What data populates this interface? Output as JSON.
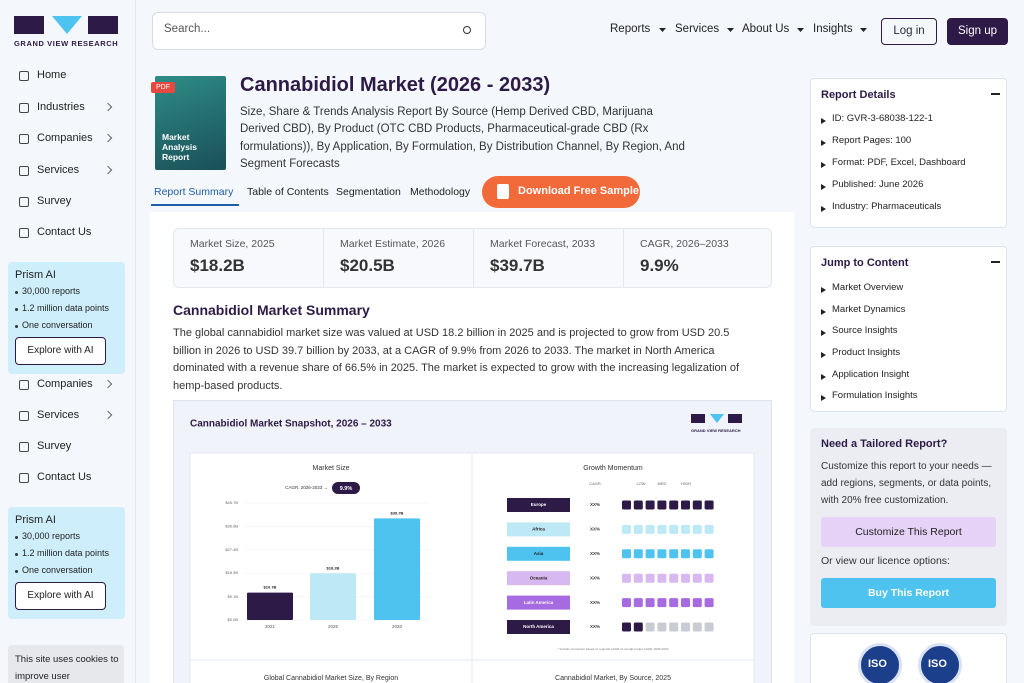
{
  "sidebar": {
    "logo": "GRAND VIEW RESEARCH",
    "nav": [
      "Home",
      "Industries",
      "Companies",
      "Services",
      "Survey",
      "Contact Us"
    ],
    "prism": {
      "title": "Prism AI",
      "points": [
        "30,000 reports",
        "1.2 million data points",
        "One conversation"
      ],
      "button": "Explore with AI"
    },
    "nav_repeat": [
      "Companies",
      "Services",
      "Survey",
      "Contact Us"
    ],
    "prism_repeat": {
      "title": "Prism AI",
      "points": [
        "30,000 reports",
        "1.2 million data points",
        "One conversation"
      ],
      "button": "Explore with AI"
    },
    "cookie": "This site uses cookies to improve user experience."
  },
  "header": {
    "search": "Search...",
    "nav": [
      "Reports",
      "Services",
      "About Us",
      "Insights"
    ],
    "login": "Log in",
    "signup": "Sign up"
  },
  "report": {
    "badge": "PDF",
    "cover": "Market Analysis Report",
    "title": "Cannabidiol Market (2026 - 2033)",
    "subtitle": "Size, Share & Trends Analysis Report By Source (Hemp Derived CBD, Marijuana Derived CBD), By Product (OTC CBD Products, Pharmaceutical-grade CBD (Rx formulations)), By Application, By Formulation, By Distribution Channel, By Region, And Segment Forecasts",
    "tabs": [
      "Report Summary",
      "Table of Contents",
      "Segmentation",
      "Methodology"
    ],
    "download": "Download Free Sample"
  },
  "stats": [
    {
      "label": "Market Size, 2025",
      "value": "$18.2B"
    },
    {
      "label": "Market Estimate, 2026",
      "value": "$20.5B"
    },
    {
      "label": "Market Forecast, 2033",
      "value": "$39.7B"
    },
    {
      "label": "CAGR, 2026–2033",
      "value": "9.9%"
    }
  ],
  "summary": {
    "heading": "Cannabidiol Market Summary",
    "text": "The global cannabidiol market size was valued at USD 18.2 billion in 2025 and is projected to grow from USD 20.5 billion in 2026 to USD 39.7 billion by 2033, at a CAGR of 9.9% from 2026 to 2033. The market in North America dominated with a revenue share of 66.5% in 2025. The market is expected to grow with the increasing legalization of hemp-based products."
  },
  "snapshot": {
    "title": "Cannabidiol Market Snapshot, 2026 – 2033",
    "logo": "GRAND VIEW RESEARCH",
    "chart": {
      "type": "bar",
      "title": "Market Size",
      "cagr_label": "CAGR, 2026-2033 →",
      "cagr_value": "9.9%",
      "categories": [
        "2021",
        "2025",
        "2033"
      ],
      "values": [
        10.7,
        18.2,
        39.7
      ],
      "value_labels": [
        "$10.7B",
        "$18.2B",
        "$39.7B"
      ],
      "colors": [
        "#2e1a47",
        "#bde9f7",
        "#4ec3ef"
      ],
      "ylim": [
        0,
        45.7
      ],
      "yticks": [
        {
          "value": 0,
          "label": "$0.0B"
        },
        {
          "value": 9.1,
          "label": "$9.1B"
        },
        {
          "value": 18.3,
          "label": "$18.3B"
        },
        {
          "value": 27.4,
          "label": "$27.4B"
        },
        {
          "value": 36.6,
          "label": "$36.6B"
        },
        {
          "value": 45.7,
          "label": "$45.7B"
        }
      ]
    },
    "momentum": {
      "title": "Growth Momentum",
      "columns": [
        "CAGR",
        "LOW",
        "MED",
        "HIGH"
      ],
      "regions": [
        {
          "name": "Europe",
          "color": "#2e1a47",
          "cagr": "XX%",
          "level": 8
        },
        {
          "name": "Africa",
          "color": "#bde9f7",
          "cagr": "XX%",
          "level": 8
        },
        {
          "name": "Asia",
          "color": "#4ec3ef",
          "cagr": "XX%",
          "level": 8
        },
        {
          "name": "Oceania",
          "color": "#d7b8f0",
          "cagr": "XX%",
          "level": 8
        },
        {
          "name": "Latin America",
          "color": "#a66be0",
          "cagr": "XX%",
          "level": 8
        },
        {
          "name": "North America",
          "color": "#2e1a47",
          "cagr": "XX%",
          "level": 2
        }
      ],
      "note": "* Growth momentum based on regional CAGR vs overall market CAGR, 2026-2033"
    },
    "captions": [
      "Global Cannabidiol Market Size, By Region",
      "Cannabidiol Market, By Source, 2025"
    ]
  },
  "details": {
    "title": "Report Details",
    "items": [
      "ID: GVR-3-68038-122-1",
      "Report Pages: 100",
      "Format: PDF, Excel, Dashboard",
      "Published: June 2026",
      "Industry: Pharmaceuticals"
    ]
  },
  "jump": {
    "title": "Jump to Content",
    "items": [
      "Market Overview",
      "Market Dynamics",
      "Source Insights",
      "Product Insights",
      "Application Insight",
      "Formulation Insights"
    ]
  },
  "tailored": {
    "title": "Need a Tailored Report?",
    "text": "Customize this report to your needs — add regions, segments, or data points, with 20% free customization.",
    "customize": "Customize This Report",
    "licence": "Or view our licence options:",
    "buy": "Buy This Report"
  },
  "certifications": [
    "ISO",
    "ISO"
  ]
}
